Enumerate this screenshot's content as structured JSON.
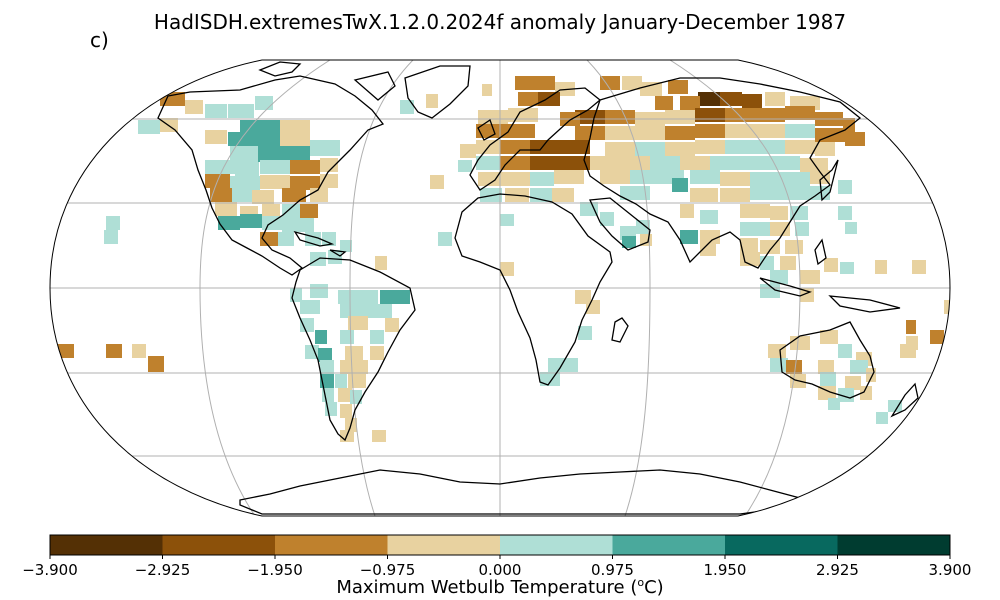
{
  "title": "HadISDH.extremesTwX.1.2.0.2024f anomaly January-December 1987",
  "panel_label": "c)",
  "colorbar": {
    "label": "Maximum Wetbulb Temperature (",
    "label_sup": "o",
    "label_end": "C)",
    "ticks": [
      "−3.900",
      "−2.925",
      "−1.950",
      "−0.975",
      "0.000",
      "0.975",
      "1.950",
      "2.925",
      "3.900"
    ],
    "colors": [
      "#543005",
      "#8c510a",
      "#bf812d",
      "#e8d2a0",
      "#afdfd6",
      "#4aa99c",
      "#08695f",
      "#003c30"
    ]
  },
  "map": {
    "projection": "Robinson",
    "gridlines": true,
    "bins": {
      "d4": "#543005",
      "d3": "#8c510a",
      "d2": "#bf812d",
      "d1": "#e8d2a0",
      "t1": "#afdfd6",
      "t2": "#4aa99c",
      "t3": "#08695f"
    }
  }
}
